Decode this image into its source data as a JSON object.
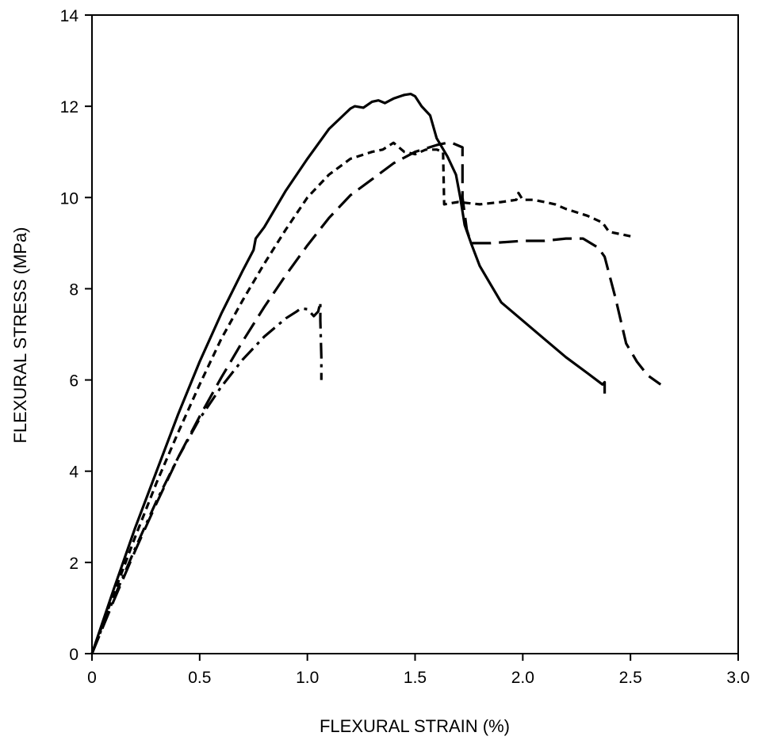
{
  "chart_data": {
    "type": "line",
    "title": "",
    "xlabel": "FLEXURAL STRAIN (%)",
    "ylabel": "FLEXURAL STRESS (MPa)",
    "xlim": [
      0,
      3.0
    ],
    "ylim": [
      0,
      14
    ],
    "xticks": [
      0,
      0.5,
      1.0,
      1.5,
      2.0,
      2.5,
      3.0
    ],
    "xtick_labels": [
      "0",
      "0.5",
      "1.0",
      "1.5",
      "2.0",
      "2.5",
      "3.0"
    ],
    "yticks": [
      0,
      2,
      4,
      6,
      8,
      10,
      12,
      14
    ],
    "ytick_labels": [
      "0",
      "2",
      "4",
      "6",
      "8",
      "10",
      "12",
      "14"
    ],
    "grid": false,
    "series": [
      {
        "line_style": "solid",
        "color": "#000000",
        "points": [
          [
            0,
            0
          ],
          [
            0.1,
            1.4
          ],
          [
            0.2,
            2.75
          ],
          [
            0.3,
            4.0
          ],
          [
            0.4,
            5.25
          ],
          [
            0.5,
            6.4
          ],
          [
            0.6,
            7.45
          ],
          [
            0.7,
            8.4
          ],
          [
            0.75,
            8.85
          ],
          [
            0.76,
            9.1
          ],
          [
            0.8,
            9.35
          ],
          [
            0.9,
            10.15
          ],
          [
            1.0,
            10.85
          ],
          [
            1.1,
            11.5
          ],
          [
            1.2,
            11.95
          ],
          [
            1.22,
            12.0
          ],
          [
            1.26,
            11.97
          ],
          [
            1.3,
            12.1
          ],
          [
            1.33,
            12.13
          ],
          [
            1.36,
            12.07
          ],
          [
            1.4,
            12.17
          ],
          [
            1.45,
            12.25
          ],
          [
            1.48,
            12.27
          ],
          [
            1.5,
            12.22
          ],
          [
            1.53,
            12.0
          ],
          [
            1.57,
            11.8
          ],
          [
            1.6,
            11.3
          ],
          [
            1.65,
            10.9
          ],
          [
            1.69,
            10.5
          ],
          [
            1.71,
            10.0
          ],
          [
            1.73,
            9.4
          ],
          [
            1.76,
            9.0
          ],
          [
            1.8,
            8.5
          ],
          [
            1.85,
            8.1
          ],
          [
            1.9,
            7.7
          ],
          [
            2.0,
            7.3
          ],
          [
            2.1,
            6.9
          ],
          [
            2.2,
            6.5
          ],
          [
            2.3,
            6.15
          ],
          [
            2.37,
            5.9
          ],
          [
            2.38,
            5.95
          ],
          [
            2.38,
            5.7
          ]
        ]
      },
      {
        "line_style": "short-dash",
        "color": "#000000",
        "points": [
          [
            0,
            0
          ],
          [
            0.1,
            1.3
          ],
          [
            0.2,
            2.55
          ],
          [
            0.3,
            3.75
          ],
          [
            0.4,
            4.85
          ],
          [
            0.5,
            5.9
          ],
          [
            0.6,
            6.9
          ],
          [
            0.7,
            7.75
          ],
          [
            0.8,
            8.55
          ],
          [
            0.9,
            9.3
          ],
          [
            1.0,
            10.0
          ],
          [
            1.1,
            10.5
          ],
          [
            1.2,
            10.85
          ],
          [
            1.3,
            11.0
          ],
          [
            1.35,
            11.05
          ],
          [
            1.4,
            11.2
          ],
          [
            1.45,
            11.0
          ],
          [
            1.5,
            10.95
          ],
          [
            1.55,
            11.05
          ],
          [
            1.6,
            11.05
          ],
          [
            1.63,
            11.0
          ],
          [
            1.635,
            9.85
          ],
          [
            1.7,
            9.9
          ],
          [
            1.8,
            9.85
          ],
          [
            1.9,
            9.9
          ],
          [
            1.97,
            9.95
          ],
          [
            1.98,
            10.1
          ],
          [
            2.0,
            9.95
          ],
          [
            2.05,
            9.95
          ],
          [
            2.1,
            9.9
          ],
          [
            2.15,
            9.85
          ],
          [
            2.2,
            9.75
          ],
          [
            2.3,
            9.6
          ],
          [
            2.37,
            9.45
          ],
          [
            2.4,
            9.25
          ],
          [
            2.5,
            9.15
          ]
        ]
      },
      {
        "line_style": "long-dash",
        "color": "#000000",
        "points": [
          [
            0,
            0
          ],
          [
            0.1,
            1.15
          ],
          [
            0.2,
            2.25
          ],
          [
            0.3,
            3.3
          ],
          [
            0.4,
            4.3
          ],
          [
            0.5,
            5.2
          ],
          [
            0.6,
            6.05
          ],
          [
            0.7,
            6.85
          ],
          [
            0.8,
            7.6
          ],
          [
            0.9,
            8.3
          ],
          [
            1.0,
            8.95
          ],
          [
            1.1,
            9.55
          ],
          [
            1.2,
            10.05
          ],
          [
            1.3,
            10.4
          ],
          [
            1.4,
            10.75
          ],
          [
            1.5,
            11.0
          ],
          [
            1.6,
            11.15
          ],
          [
            1.65,
            11.2
          ],
          [
            1.67,
            11.2
          ],
          [
            1.72,
            11.1
          ],
          [
            1.72,
            10.0
          ],
          [
            1.74,
            9.3
          ],
          [
            1.76,
            9.0
          ],
          [
            1.85,
            9.0
          ],
          [
            2.0,
            9.05
          ],
          [
            2.1,
            9.05
          ],
          [
            2.2,
            9.1
          ],
          [
            2.28,
            9.1
          ],
          [
            2.35,
            8.9
          ],
          [
            2.38,
            8.7
          ],
          [
            2.43,
            7.8
          ],
          [
            2.48,
            6.8
          ],
          [
            2.53,
            6.4
          ],
          [
            2.58,
            6.1
          ],
          [
            2.64,
            5.9
          ]
        ]
      },
      {
        "line_style": "dash-dot",
        "color": "#000000",
        "points": [
          [
            0,
            0
          ],
          [
            0.1,
            1.2
          ],
          [
            0.2,
            2.3
          ],
          [
            0.3,
            3.35
          ],
          [
            0.4,
            4.3
          ],
          [
            0.5,
            5.15
          ],
          [
            0.6,
            5.85
          ],
          [
            0.7,
            6.45
          ],
          [
            0.8,
            6.95
          ],
          [
            0.9,
            7.35
          ],
          [
            0.95,
            7.5
          ],
          [
            0.97,
            7.57
          ],
          [
            1.0,
            7.55
          ],
          [
            1.03,
            7.4
          ],
          [
            1.05,
            7.5
          ],
          [
            1.06,
            7.7
          ],
          [
            1.06,
            7.3
          ],
          [
            1.065,
            6.5
          ],
          [
            1.065,
            6.0
          ]
        ]
      }
    ]
  }
}
